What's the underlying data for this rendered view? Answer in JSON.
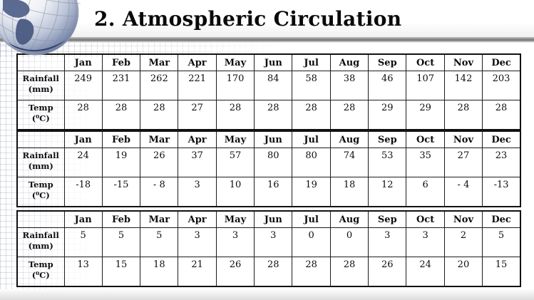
{
  "slide": {
    "title": "2. Atmospheric Circulation",
    "globe_icon": "globe"
  },
  "tables": [
    {
      "name": "climate-table-1",
      "columns": [
        "Jan",
        "Feb",
        "Mar",
        "Apr",
        "May",
        "Jun",
        "Jul",
        "Aug",
        "Sep",
        "Oct",
        "Nov",
        "Dec"
      ],
      "rows": [
        {
          "label": "Rainfall\n(mm)",
          "values": [
            "249",
            "231",
            "262",
            "221",
            "170",
            "84",
            "58",
            "38",
            "46",
            "107",
            "142",
            "203"
          ]
        },
        {
          "label": "Temp\n(⁰C)",
          "values": [
            "28",
            "28",
            "28",
            "27",
            "28",
            "28",
            "28",
            "28",
            "29",
            "29",
            "28",
            "28"
          ]
        }
      ]
    },
    {
      "name": "climate-table-2",
      "columns": [
        "Jan",
        "Feb",
        "Mar",
        "Apr",
        "May",
        "Jun",
        "Jul",
        "Aug",
        "Sep",
        "Oct",
        "Nov",
        "Dec"
      ],
      "rows": [
        {
          "label": "Rainfall\n(mm)",
          "values": [
            "24",
            "19",
            "26",
            "37",
            "57",
            "80",
            "80",
            "74",
            "53",
            "35",
            "27",
            "23"
          ]
        },
        {
          "label": "Temp\n(⁰C)",
          "values": [
            "-18",
            "-15",
            "- 8",
            "3",
            "10",
            "16",
            "19",
            "18",
            "12",
            "6",
            "- 4",
            "-13"
          ]
        }
      ]
    },
    {
      "name": "climate-table-3",
      "columns": [
        "Jan",
        "Feb",
        "Mar",
        "Apr",
        "May",
        "Jun",
        "Jul",
        "Aug",
        "Sep",
        "Oct",
        "Nov",
        "Dec"
      ],
      "rows": [
        {
          "label": "Rainfall\n(mm)",
          "values": [
            "5",
            "5",
            "5",
            "3",
            "3",
            "3",
            "0",
            "0",
            "3",
            "3",
            "2",
            "5"
          ]
        },
        {
          "label": "Temp\n(⁰C)",
          "values": [
            "13",
            "15",
            "18",
            "21",
            "26",
            "28",
            "28",
            "28",
            "26",
            "24",
            "20",
            "15"
          ]
        }
      ]
    }
  ]
}
